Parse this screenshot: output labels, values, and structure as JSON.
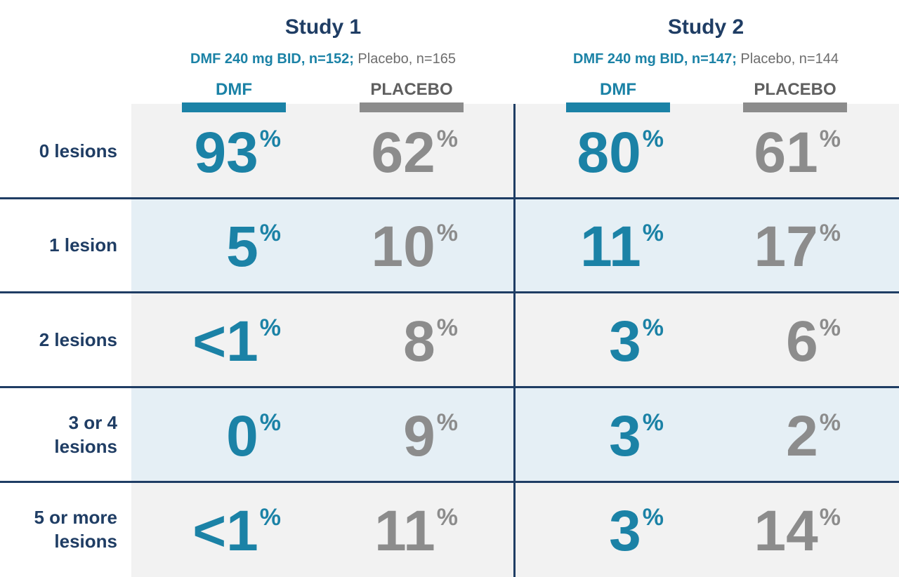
{
  "header": {
    "studies": [
      {
        "title": "Study 1",
        "dose": "DMF 240 mg BID, n=152;",
        "placebo": "Placebo, n=165",
        "columns": [
          "DMF",
          "PLACEBO"
        ]
      },
      {
        "title": "Study 2",
        "dose": "DMF 240 mg BID, n=147;",
        "placebo": "Placebo, n=144",
        "columns": [
          "DMF",
          "PLACEBO"
        ]
      }
    ]
  },
  "table": {
    "rows": [
      {
        "label": "0 lesions",
        "cells": [
          {
            "value": "93",
            "unit": "%"
          },
          {
            "value": "62",
            "unit": "%"
          },
          {
            "value": "80",
            "unit": "%"
          },
          {
            "value": "61",
            "unit": "%"
          }
        ]
      },
      {
        "label": "1 lesion",
        "cells": [
          {
            "value": "5",
            "unit": "%"
          },
          {
            "value": "10",
            "unit": "%"
          },
          {
            "value": "11",
            "unit": "%"
          },
          {
            "value": "17",
            "unit": "%"
          }
        ]
      },
      {
        "label": "2 lesions",
        "cells": [
          {
            "value": "<1",
            "unit": "%"
          },
          {
            "value": "8",
            "unit": "%"
          },
          {
            "value": "3",
            "unit": "%"
          },
          {
            "value": "6",
            "unit": "%"
          }
        ]
      },
      {
        "label": "3 or 4 lesions",
        "cells": [
          {
            "value": "0",
            "unit": "%"
          },
          {
            "value": "9",
            "unit": "%"
          },
          {
            "value": "3",
            "unit": "%"
          },
          {
            "value": "2",
            "unit": "%"
          }
        ]
      },
      {
        "label": "5 or more lesions",
        "cells": [
          {
            "value": "<1",
            "unit": "%"
          },
          {
            "value": "11",
            "unit": "%"
          },
          {
            "value": "3",
            "unit": "%"
          },
          {
            "value": "14",
            "unit": "%"
          }
        ]
      }
    ]
  }
}
